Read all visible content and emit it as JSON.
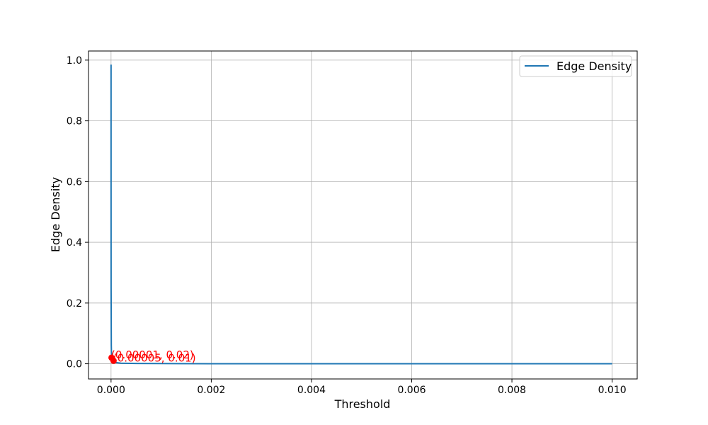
{
  "chart_data": {
    "type": "line",
    "title": "",
    "xlabel": "Threshold",
    "ylabel": "Edge Density",
    "xlim": [
      -0.00045,
      0.0105
    ],
    "ylim": [
      -0.05,
      1.03
    ],
    "xticks": [
      0.0,
      0.002,
      0.004,
      0.006,
      0.008,
      0.01
    ],
    "xtick_labels": [
      "0.000",
      "0.002",
      "0.004",
      "0.006",
      "0.008",
      "0.010"
    ],
    "yticks": [
      0.0,
      0.2,
      0.4,
      0.6,
      0.8,
      1.0
    ],
    "ytick_labels": [
      "0.0",
      "0.2",
      "0.4",
      "0.6",
      "0.8",
      "1.0"
    ],
    "grid": true,
    "legend": {
      "position": "top-right",
      "entries": [
        "Edge Density"
      ]
    },
    "series": [
      {
        "name": "Edge Density",
        "color": "#1f77b4",
        "x": [
          0.0,
          2e-07,
          1e-06,
          5e-06,
          1e-05,
          2e-05,
          5e-05,
          0.0001,
          0.0002,
          0.0005,
          0.001,
          0.002,
          0.004,
          0.006,
          0.008,
          0.01
        ],
        "y": [
          0.985,
          0.6,
          0.25,
          0.06,
          0.02,
          0.014,
          0.01,
          0.004,
          0.002,
          0.001,
          0.0006,
          0.0003,
          0.0001,
          5e-05,
          3e-05,
          2e-05
        ]
      }
    ],
    "annotations": [
      {
        "x": 1e-05,
        "y": 0.02,
        "label": "(0.00001, 0.02)",
        "color": "#ff0000"
      },
      {
        "x": 5e-05,
        "y": 0.01,
        "label": "(0.00005, 0.01)",
        "color": "#ff0000"
      }
    ]
  }
}
